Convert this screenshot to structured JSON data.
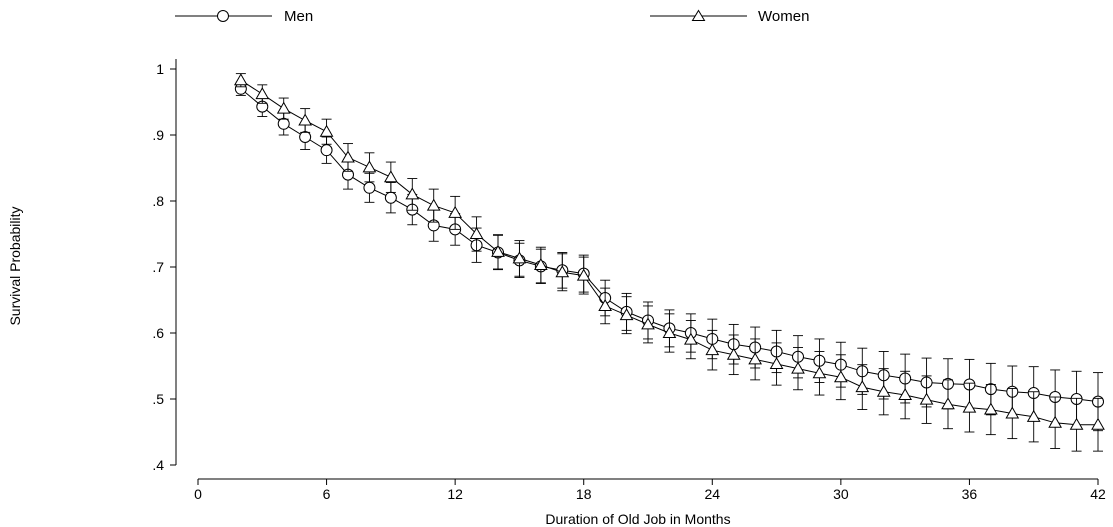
{
  "chart_data": {
    "type": "line",
    "xlabel": "Duration of Old Job in Months",
    "ylabel": "Survival Probability",
    "xlim": [
      0,
      42
    ],
    "ylim": [
      0.4,
      1.0
    ],
    "x_ticks": [
      0,
      6,
      12,
      18,
      24,
      30,
      36,
      42
    ],
    "x_tick_labels": [
      "0",
      "6",
      "12",
      "18",
      "24",
      "30",
      "36",
      "42"
    ],
    "y_ticks": [
      0.4,
      0.5,
      0.6,
      0.7,
      0.8,
      0.9,
      1.0
    ],
    "y_tick_labels": [
      ".4",
      ".5",
      ".6",
      ".7",
      ".8",
      ".9",
      "1"
    ],
    "grid": false,
    "legend_position": "top",
    "series": [
      {
        "name": "Men",
        "marker": "circle",
        "x": [
          2,
          3,
          4,
          5,
          6,
          7,
          8,
          9,
          10,
          11,
          12,
          13,
          14,
          15,
          16,
          17,
          18,
          19,
          20,
          21,
          22,
          23,
          24,
          25,
          26,
          27,
          28,
          29,
          30,
          31,
          32,
          33,
          34,
          35,
          36,
          37,
          38,
          39,
          40,
          41,
          42
        ],
        "values": [
          0.97,
          0.943,
          0.917,
          0.897,
          0.877,
          0.84,
          0.82,
          0.805,
          0.787,
          0.763,
          0.757,
          0.733,
          0.722,
          0.71,
          0.701,
          0.695,
          0.69,
          0.653,
          0.632,
          0.619,
          0.607,
          0.6,
          0.591,
          0.583,
          0.578,
          0.572,
          0.564,
          0.558,
          0.552,
          0.542,
          0.536,
          0.531,
          0.525,
          0.523,
          0.522,
          0.515,
          0.511,
          0.509,
          0.503,
          0.5,
          0.496
        ],
        "ci_lower": [
          0.96,
          0.928,
          0.9,
          0.878,
          0.857,
          0.818,
          0.798,
          0.782,
          0.764,
          0.739,
          0.733,
          0.707,
          0.696,
          0.684,
          0.675,
          0.668,
          0.662,
          0.626,
          0.604,
          0.591,
          0.579,
          0.571,
          0.561,
          0.553,
          0.547,
          0.54,
          0.532,
          0.525,
          0.518,
          0.507,
          0.5,
          0.494,
          0.488,
          0.485,
          0.484,
          0.476,
          0.472,
          0.469,
          0.462,
          0.458,
          0.452
        ],
        "ci_upper": [
          0.98,
          0.958,
          0.934,
          0.916,
          0.897,
          0.862,
          0.842,
          0.828,
          0.81,
          0.787,
          0.781,
          0.759,
          0.748,
          0.736,
          0.727,
          0.722,
          0.718,
          0.68,
          0.66,
          0.647,
          0.635,
          0.629,
          0.621,
          0.613,
          0.609,
          0.604,
          0.596,
          0.591,
          0.586,
          0.577,
          0.572,
          0.568,
          0.562,
          0.561,
          0.56,
          0.554,
          0.55,
          0.549,
          0.544,
          0.542,
          0.54
        ]
      },
      {
        "name": "Women",
        "marker": "triangle",
        "x": [
          2,
          3,
          4,
          5,
          6,
          7,
          8,
          9,
          10,
          11,
          12,
          13,
          14,
          15,
          16,
          17,
          18,
          19,
          20,
          21,
          22,
          23,
          24,
          25,
          26,
          27,
          28,
          29,
          30,
          31,
          32,
          33,
          34,
          35,
          36,
          37,
          38,
          39,
          40,
          41,
          42
        ],
        "values": [
          0.983,
          0.962,
          0.94,
          0.922,
          0.905,
          0.866,
          0.851,
          0.836,
          0.81,
          0.793,
          0.782,
          0.75,
          0.723,
          0.713,
          0.703,
          0.692,
          0.687,
          0.641,
          0.627,
          0.613,
          0.6,
          0.59,
          0.574,
          0.567,
          0.56,
          0.553,
          0.546,
          0.539,
          0.533,
          0.518,
          0.511,
          0.506,
          0.499,
          0.492,
          0.487,
          0.484,
          0.478,
          0.473,
          0.464,
          0.461,
          0.461
        ],
        "ci_lower": [
          0.973,
          0.948,
          0.924,
          0.904,
          0.886,
          0.845,
          0.829,
          0.813,
          0.786,
          0.768,
          0.757,
          0.724,
          0.697,
          0.686,
          0.676,
          0.664,
          0.659,
          0.614,
          0.599,
          0.585,
          0.571,
          0.561,
          0.544,
          0.537,
          0.529,
          0.521,
          0.514,
          0.506,
          0.499,
          0.484,
          0.476,
          0.47,
          0.463,
          0.455,
          0.45,
          0.446,
          0.44,
          0.435,
          0.425,
          0.421,
          0.421
        ],
        "ci_upper": [
          0.993,
          0.976,
          0.956,
          0.94,
          0.924,
          0.887,
          0.873,
          0.859,
          0.834,
          0.818,
          0.807,
          0.776,
          0.749,
          0.74,
          0.73,
          0.72,
          0.715,
          0.668,
          0.655,
          0.641,
          0.629,
          0.619,
          0.604,
          0.597,
          0.591,
          0.585,
          0.578,
          0.572,
          0.567,
          0.552,
          0.546,
          0.542,
          0.535,
          0.529,
          0.524,
          0.522,
          0.516,
          0.511,
          0.503,
          0.501,
          0.501
        ]
      }
    ]
  }
}
